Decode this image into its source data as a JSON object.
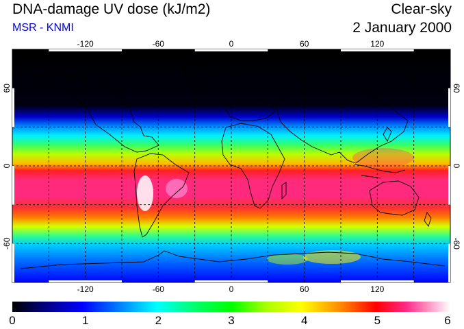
{
  "header": {
    "title": "DNA-damage UV dose (kJ/m2)",
    "subtitle": "MSR - KNMI",
    "condition": "Clear-sky",
    "date": "2 January 2000"
  },
  "colors": {
    "subtitle": "#0000dd"
  },
  "map": {
    "lon_ticks": [
      "-120",
      "-60",
      "0",
      "60",
      "120"
    ],
    "lon_tick_values": [
      -120,
      -60,
      0,
      60,
      120
    ],
    "lat_ticks": [
      "60",
      "0",
      "-60"
    ],
    "lat_tick_values": [
      60,
      0,
      -60
    ],
    "lon_range": [
      -180,
      180
    ],
    "lat_range": [
      -90,
      90
    ]
  },
  "colorbar": {
    "min": 0,
    "max": 6,
    "labels": [
      "0",
      "1",
      "2",
      "3",
      "4",
      "5",
      "6"
    ],
    "stops": [
      "#000000",
      "#0000ff",
      "#00ffff",
      "#00ff00",
      "#ffff00",
      "#ff0000",
      "#ff33aa",
      "#ffffff"
    ]
  }
}
